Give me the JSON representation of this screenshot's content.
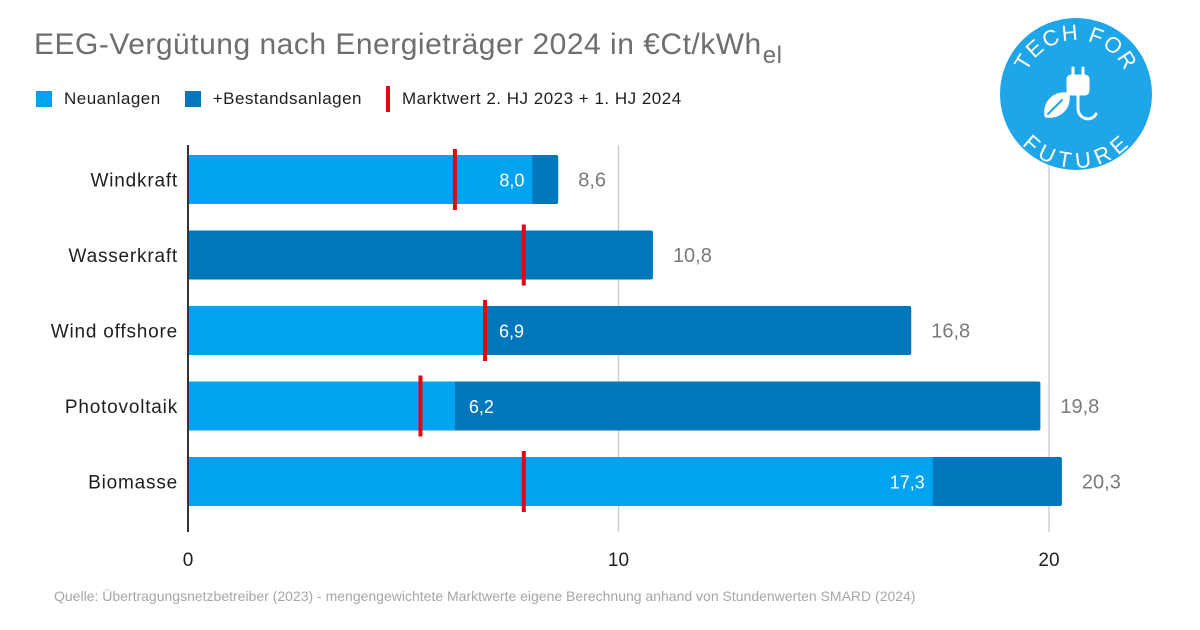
{
  "title": "EEG-Vergütung nach Energieträger 2024 in €Ct/kWh",
  "title_subscript": "el",
  "legend": {
    "neuanlagen": "Neuanlagen",
    "bestandsanlagen": "+Bestandsanlagen",
    "marktwert": "Marktwert  2. HJ 2023 + 1. HJ 2024"
  },
  "source": "Quelle: Übertragungsnetzbetreiber (2023) - mengengewichtete Marktwerte eigene Berechnung anhand von Stundenwerten SMARD (2024)",
  "logo": {
    "top_text": "TECH FOR",
    "bottom_text": "FUTURE",
    "icon": "leaf-plug-icon"
  },
  "colors": {
    "neu": "#00a3f0",
    "bestand": "#0077ba",
    "marker": "#e30613",
    "logo": "#1ea6e8"
  },
  "chart_data": {
    "type": "bar",
    "orientation": "horizontal",
    "stacked": true,
    "categories": [
      "Windkraft",
      "Wasserkraft",
      "Wind offshore",
      "Photovoltaik",
      "Biomasse"
    ],
    "series": [
      {
        "name": "Neuanlagen",
        "values": [
          8.0,
          0,
          6.9,
          6.2,
          17.3
        ],
        "labels": [
          "8,0",
          "",
          "6,9",
          "6,2",
          "17,3"
        ]
      },
      {
        "name": "+Bestandsanlagen",
        "totals": [
          8.6,
          10.8,
          16.8,
          19.8,
          20.3
        ],
        "total_labels": [
          "8,6",
          "10,8",
          "16,8",
          "19,8",
          "20,3"
        ]
      }
    ],
    "marktwert": [
      6.2,
      7.8,
      6.9,
      5.4,
      7.8
    ],
    "xlim": [
      0,
      20.5
    ],
    "xticks": [
      0,
      10,
      20
    ],
    "xtick_labels": [
      "0",
      "10",
      "20"
    ],
    "grid": "vertical"
  }
}
